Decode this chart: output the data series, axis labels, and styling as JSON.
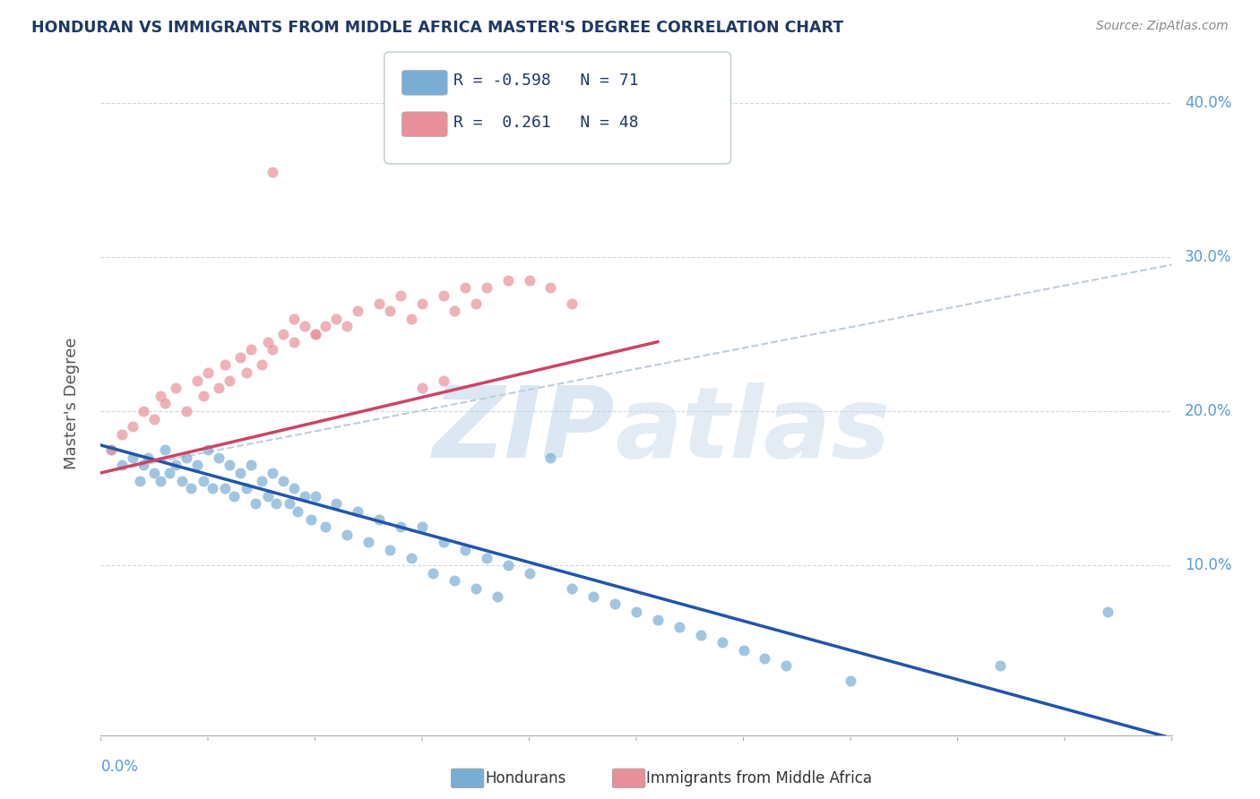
{
  "title": "HONDURAN VS IMMIGRANTS FROM MIDDLE AFRICA MASTER'S DEGREE CORRELATION CHART",
  "source": "Source: ZipAtlas.com",
  "ylabel": "Master's Degree",
  "legend_entries": [
    {
      "label": "Hondurans",
      "R": "-0.598",
      "N": "71",
      "color": "#aec6e8"
    },
    {
      "label": "Immigrants from Middle Africa",
      "R": "0.261",
      "N": "48",
      "color": "#f4b8c1"
    }
  ],
  "blue_scatter_color": "#7aadd4",
  "pink_scatter_color": "#e8909a",
  "line_blue": "#2255aa",
  "line_pink": "#cc4466",
  "line_dash_color": "#c0ccd8",
  "xmin": 0.0,
  "xmax": 0.5,
  "ymin": -0.01,
  "ymax": 0.42,
  "yticks": [
    0.1,
    0.2,
    0.3,
    0.4
  ],
  "ytick_labels": [
    "10.0%",
    "20.0%",
    "30.0%",
    "40.0%"
  ],
  "blue_scatter_x": [
    0.005,
    0.01,
    0.015,
    0.018,
    0.02,
    0.022,
    0.025,
    0.028,
    0.03,
    0.032,
    0.035,
    0.038,
    0.04,
    0.042,
    0.045,
    0.048,
    0.05,
    0.052,
    0.055,
    0.058,
    0.06,
    0.062,
    0.065,
    0.068,
    0.07,
    0.072,
    0.075,
    0.078,
    0.08,
    0.082,
    0.085,
    0.088,
    0.09,
    0.092,
    0.095,
    0.098,
    0.1,
    0.105,
    0.11,
    0.115,
    0.12,
    0.125,
    0.13,
    0.135,
    0.14,
    0.145,
    0.15,
    0.155,
    0.16,
    0.165,
    0.17,
    0.175,
    0.18,
    0.185,
    0.19,
    0.2,
    0.21,
    0.22,
    0.23,
    0.24,
    0.25,
    0.26,
    0.27,
    0.28,
    0.29,
    0.3,
    0.31,
    0.32,
    0.35,
    0.42,
    0.47
  ],
  "blue_scatter_y": [
    0.175,
    0.165,
    0.17,
    0.155,
    0.165,
    0.17,
    0.16,
    0.155,
    0.175,
    0.16,
    0.165,
    0.155,
    0.17,
    0.15,
    0.165,
    0.155,
    0.175,
    0.15,
    0.17,
    0.15,
    0.165,
    0.145,
    0.16,
    0.15,
    0.165,
    0.14,
    0.155,
    0.145,
    0.16,
    0.14,
    0.155,
    0.14,
    0.15,
    0.135,
    0.145,
    0.13,
    0.145,
    0.125,
    0.14,
    0.12,
    0.135,
    0.115,
    0.13,
    0.11,
    0.125,
    0.105,
    0.125,
    0.095,
    0.115,
    0.09,
    0.11,
    0.085,
    0.105,
    0.08,
    0.1,
    0.095,
    0.17,
    0.085,
    0.08,
    0.075,
    0.07,
    0.065,
    0.06,
    0.055,
    0.05,
    0.045,
    0.04,
    0.035,
    0.025,
    0.035,
    0.07
  ],
  "pink_scatter_x": [
    0.005,
    0.01,
    0.015,
    0.02,
    0.025,
    0.028,
    0.03,
    0.035,
    0.04,
    0.045,
    0.048,
    0.05,
    0.055,
    0.058,
    0.06,
    0.065,
    0.068,
    0.07,
    0.075,
    0.078,
    0.08,
    0.085,
    0.09,
    0.095,
    0.1,
    0.105,
    0.11,
    0.115,
    0.12,
    0.13,
    0.135,
    0.14,
    0.145,
    0.15,
    0.16,
    0.165,
    0.17,
    0.175,
    0.18,
    0.19,
    0.2,
    0.21,
    0.22,
    0.08,
    0.09,
    0.1,
    0.15,
    0.16
  ],
  "pink_scatter_y": [
    0.175,
    0.185,
    0.19,
    0.2,
    0.195,
    0.21,
    0.205,
    0.215,
    0.2,
    0.22,
    0.21,
    0.225,
    0.215,
    0.23,
    0.22,
    0.235,
    0.225,
    0.24,
    0.23,
    0.245,
    0.24,
    0.25,
    0.245,
    0.255,
    0.25,
    0.255,
    0.26,
    0.255,
    0.265,
    0.27,
    0.265,
    0.275,
    0.26,
    0.27,
    0.275,
    0.265,
    0.28,
    0.27,
    0.28,
    0.285,
    0.285,
    0.28,
    0.27,
    0.355,
    0.26,
    0.25,
    0.215,
    0.22
  ],
  "blue_line_x": [
    0.0,
    0.5
  ],
  "blue_line_y": [
    0.178,
    -0.012
  ],
  "pink_line_x": [
    0.0,
    0.26
  ],
  "pink_line_y": [
    0.16,
    0.245
  ],
  "dash_line_x": [
    0.0,
    0.5
  ],
  "dash_line_y": [
    0.16,
    0.295
  ],
  "bg_color": "#ffffff",
  "grid_color": "#c8d4dc",
  "title_color": "#1f3864",
  "source_color": "#888888",
  "axis_label_color": "#5b9bd5",
  "watermark_zip_color": "#b8d0e8",
  "watermark_atlas_color": "#c8daea"
}
